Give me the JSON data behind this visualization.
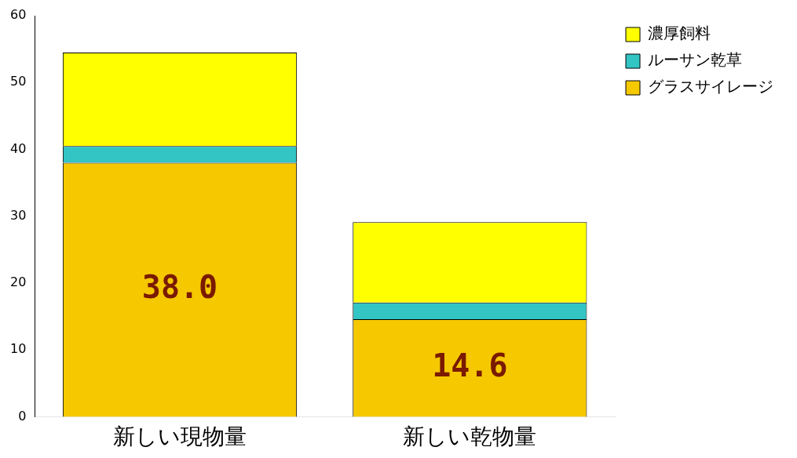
{
  "chart_data": {
    "type": "bar",
    "stacked": true,
    "categories": [
      "新しい現物量",
      "新しい乾物量"
    ],
    "series": [
      {
        "name": "グラスサイレージ",
        "color": "#f5c800",
        "values": [
          38.0,
          14.6
        ],
        "value_labels": [
          "38.0",
          "14.6"
        ]
      },
      {
        "name": "ルーサン乾草",
        "color": "#33c4c4",
        "values": [
          2.5,
          2.5
        ]
      },
      {
        "name": "濃厚飼料",
        "color": "#ffff00",
        "values": [
          14,
          12
        ]
      }
    ],
    "ylim": [
      0,
      60
    ],
    "yticks": [
      0,
      10,
      20,
      30,
      40,
      50,
      60
    ],
    "grid": false,
    "legend": "top right"
  }
}
